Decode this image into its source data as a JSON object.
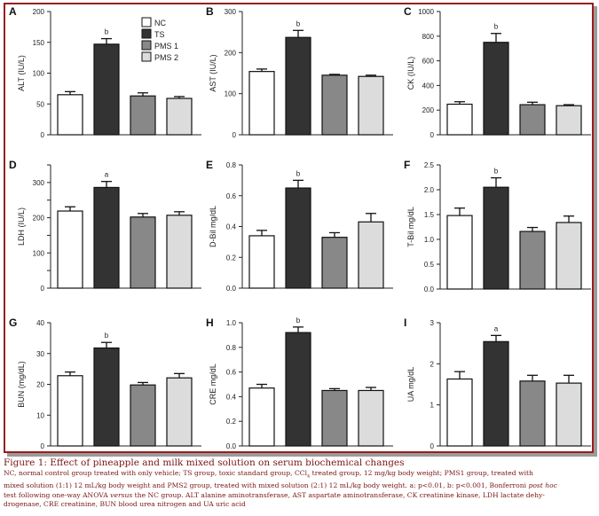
{
  "colors": {
    "frame": "#9b1c1c",
    "caption": "#7a1414",
    "NC": "#ffffff",
    "TS": "#333333",
    "PMS 1": "#888888",
    "PMS 2": "#dcdcdc"
  },
  "legend": [
    "NC",
    "TS",
    "PMS 1",
    "PMS 2"
  ],
  "chart_data": [
    {
      "type": "bar",
      "panel": "A",
      "ylabel": "ALT (IU/L)",
      "categories": [
        "NC",
        "TS",
        "PMS 1",
        "PMS 2"
      ],
      "values": [
        65,
        147,
        63,
        59
      ],
      "errors": [
        5,
        9,
        5,
        3
      ],
      "significance": [
        "",
        "b",
        "",
        ""
      ],
      "ylim": [
        0,
        200
      ],
      "yticks": [
        0,
        50,
        100,
        150,
        200
      ],
      "yticklabels": [
        "0",
        "50",
        "100",
        "150",
        "200"
      ],
      "legend": "top-right"
    },
    {
      "type": "bar",
      "panel": "B",
      "ylabel": "AST (IU/L)",
      "categories": [
        "NC",
        "TS",
        "PMS 1",
        "PMS 2"
      ],
      "values": [
        154,
        237,
        145,
        142
      ],
      "errors": [
        6,
        17,
        2,
        3
      ],
      "significance": [
        "",
        "b",
        "",
        ""
      ],
      "ylim": [
        0,
        300
      ],
      "yticks": [
        0,
        100,
        200,
        300
      ],
      "yticklabels": [
        "0",
        "100",
        "200",
        "300"
      ]
    },
    {
      "type": "bar",
      "panel": "C",
      "ylabel": "CK (IU/L)",
      "categories": [
        "NC",
        "TS",
        "PMS 1",
        "PMS 2"
      ],
      "values": [
        248,
        750,
        244,
        236
      ],
      "errors": [
        20,
        72,
        20,
        8
      ],
      "significance": [
        "",
        "b",
        "",
        ""
      ],
      "ylim": [
        0,
        1000
      ],
      "yticks": [
        0,
        200,
        400,
        600,
        800,
        1000
      ],
      "yticklabels": [
        "0",
        "200",
        "400",
        "600",
        "800",
        "1000"
      ]
    },
    {
      "type": "bar",
      "panel": "D",
      "ylabel": "LDH (IU/L)",
      "categories": [
        "NC",
        "TS",
        "PMS 1",
        "PMS 2"
      ],
      "values": [
        219,
        286,
        202,
        207
      ],
      "errors": [
        12,
        17,
        10,
        10
      ],
      "significance": [
        "",
        "a",
        "",
        ""
      ],
      "ylim": [
        0,
        350
      ],
      "yticks": [
        0,
        50,
        100,
        150,
        200,
        250,
        300,
        350
      ],
      "yticklabels": [
        "0",
        "",
        "100",
        "",
        "200",
        "",
        "300",
        ""
      ]
    },
    {
      "type": "bar",
      "panel": "E",
      "ylabel": "D-Bil mg/dL",
      "categories": [
        "NC",
        "TS",
        "PMS 1",
        "PMS 2"
      ],
      "values": [
        0.34,
        0.65,
        0.33,
        0.43
      ],
      "errors": [
        0.035,
        0.05,
        0.03,
        0.055
      ],
      "significance": [
        "",
        "b",
        "",
        ""
      ],
      "ylim": [
        0,
        0.8
      ],
      "yticks": [
        0,
        0.2,
        0.4,
        0.6,
        0.8
      ],
      "yticklabels": [
        "0.0",
        "0.2",
        "0.4",
        "0.6",
        "0.8"
      ]
    },
    {
      "type": "bar",
      "panel": "F",
      "ylabel": "T-Bil mg/dL",
      "categories": [
        "NC",
        "TS",
        "PMS 1",
        "PMS 2"
      ],
      "values": [
        1.48,
        2.05,
        1.16,
        1.34
      ],
      "errors": [
        0.15,
        0.19,
        0.08,
        0.13
      ],
      "significance": [
        "",
        "b",
        "",
        ""
      ],
      "ylim": [
        0,
        2.5
      ],
      "yticks": [
        0,
        0.5,
        1.0,
        1.5,
        2.0,
        2.5
      ],
      "yticklabels": [
        "0.0",
        "0.5",
        "1.0",
        "1.5",
        "2.0",
        "2.5"
      ]
    },
    {
      "type": "bar",
      "panel": "G",
      "ylabel": "BUN (mg/dL)",
      "categories": [
        "NC",
        "TS",
        "PMS 1",
        "PMS 2"
      ],
      "values": [
        22.8,
        31.8,
        19.8,
        22.1
      ],
      "errors": [
        1.2,
        1.8,
        0.8,
        1.4
      ],
      "significance": [
        "",
        "b",
        "",
        ""
      ],
      "ylim": [
        0,
        40
      ],
      "yticks": [
        0,
        10,
        20,
        30,
        40
      ],
      "yticklabels": [
        "0",
        "10",
        "20",
        "30",
        "40"
      ]
    },
    {
      "type": "bar",
      "panel": "H",
      "ylabel": "CRE mg/dL",
      "categories": [
        "NC",
        "TS",
        "PMS 1",
        "PMS 2"
      ],
      "values": [
        0.47,
        0.92,
        0.45,
        0.45
      ],
      "errors": [
        0.03,
        0.045,
        0.015,
        0.025
      ],
      "significance": [
        "",
        "b",
        "",
        ""
      ],
      "ylim": [
        0,
        1.0
      ],
      "yticks": [
        0,
        0.2,
        0.4,
        0.6,
        0.8,
        1.0
      ],
      "yticklabels": [
        "0.0",
        "0.2",
        "0.4",
        "0.6",
        "0.8",
        "1.0"
      ]
    },
    {
      "type": "bar",
      "panel": "I",
      "ylabel": "UA  mg/dL",
      "categories": [
        "NC",
        "TS",
        "PMS 1",
        "PMS 2"
      ],
      "values": [
        1.63,
        2.54,
        1.58,
        1.53
      ],
      "errors": [
        0.18,
        0.15,
        0.14,
        0.19
      ],
      "significance": [
        "",
        "a",
        "",
        ""
      ],
      "ylim": [
        0,
        3
      ],
      "yticks": [
        0,
        1,
        2,
        3
      ],
      "yticklabels": [
        "0",
        "1",
        "2",
        "3"
      ]
    }
  ],
  "caption": {
    "title": "Figure 1: Effect of pineapple and milk mixed solution on serum biochemical changes",
    "line1a": "NC, normal control group treated with only vehicle; TS group, toxic standard group, CCl",
    "line1sub": "4",
    "line1b": " treated group, 12 mg/kg body weight; PMS1 group, treated with",
    "line2a": "mixed solution (1:1) 12 mL/kg body weight and PMS2 group, treated with mixed solution (2:1) 12 mL/kg body weight. a: p<0.01, b: p<0.001, Bonferroni ",
    "line2b": "post hoc",
    "line3a": "test following one-way ANOVA ",
    "line3b": "versus",
    "line3c": " the NC group. ALT alanine aminotransferase, AST aspartate aminotransferase, CK creatinine kinase, LDH lactate dehy-",
    "line4": "drogenase, CRE creatinine, BUN blood urea nitrogen and UA uric acid"
  }
}
